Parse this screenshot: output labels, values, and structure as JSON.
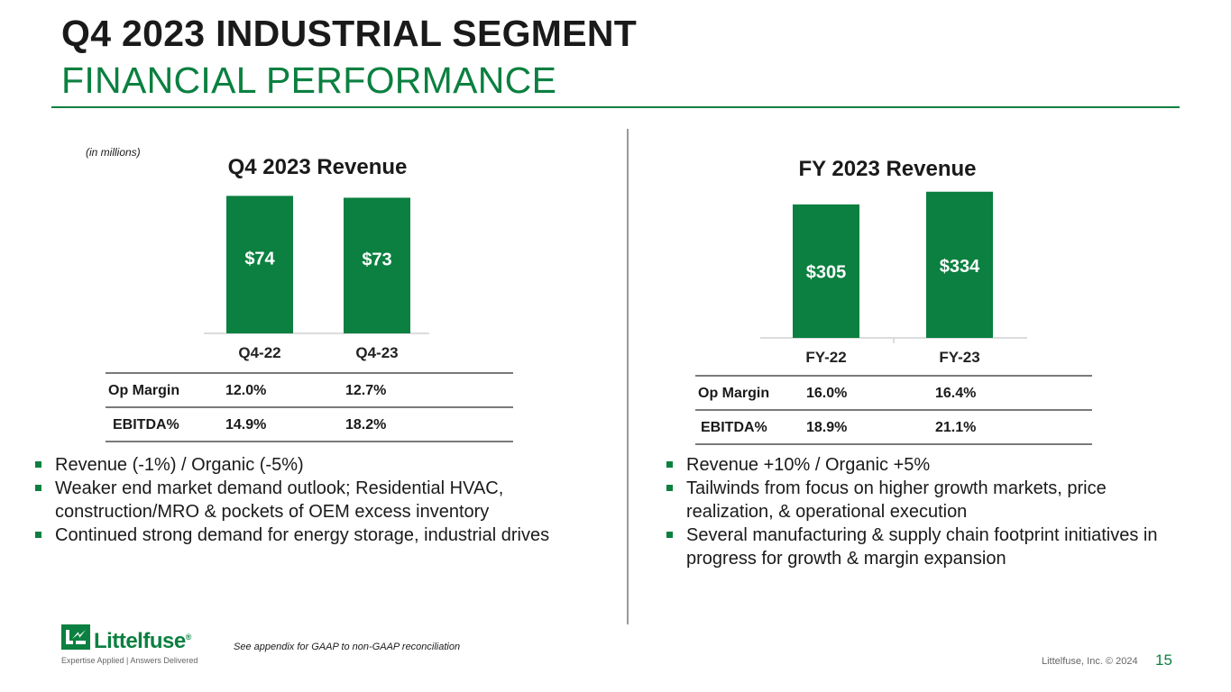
{
  "header": {
    "title": "Q4 2023 INDUSTRIAL SEGMENT",
    "subtitle": "FINANCIAL PERFORMANCE"
  },
  "units_note": "(in millions)",
  "chart_data": [
    {
      "type": "bar",
      "title": "Q4 2023 Revenue",
      "categories": [
        "Q4-22",
        "Q4-23"
      ],
      "values": [
        74,
        73
      ],
      "value_labels": [
        "$74",
        "$73"
      ],
      "ylim": [
        0,
        80
      ],
      "xlabel": "",
      "ylabel": "",
      "bar_color": "#0b8040"
    },
    {
      "type": "bar",
      "title": "FY 2023 Revenue",
      "categories": [
        "FY-22",
        "FY-23"
      ],
      "values": [
        305,
        334
      ],
      "value_labels": [
        "$305",
        "$334"
      ],
      "ylim": [
        0,
        350
      ],
      "xlabel": "",
      "ylabel": "",
      "bar_color": "#0b8040"
    }
  ],
  "tables": {
    "q4": {
      "rows": [
        {
          "label": "Op Margin",
          "v1": "12.0%",
          "v2": "12.7%"
        },
        {
          "label": "EBITDA%",
          "v1": "14.9%",
          "v2": "18.2%"
        }
      ]
    },
    "fy": {
      "rows": [
        {
          "label": "Op Margin",
          "v1": "16.0%",
          "v2": "16.4%"
        },
        {
          "label": "EBITDA%",
          "v1": "18.9%",
          "v2": "21.1%"
        }
      ]
    }
  },
  "bullets_left": [
    "Revenue (-1%) / Organic (-5%)",
    "Weaker end market demand outlook; Residential HVAC, construction/MRO & pockets of OEM excess inventory",
    "Continued strong demand for energy storage, industrial drives"
  ],
  "bullets_right": [
    "Revenue +10% / Organic +5%",
    "Tailwinds from focus on higher growth markets, price realization, & operational execution",
    "Several manufacturing & supply chain footprint initiatives in progress for growth & margin expansion"
  ],
  "footnote": "See appendix for GAAP to non-GAAP reconciliation",
  "logo": {
    "wordmark": "Littelfuse",
    "tagline": "Expertise Applied | Answers Delivered",
    "registered": "®"
  },
  "copyright": "Littelfuse, Inc. © 2024",
  "page_number": "15",
  "colors": {
    "accent": "#0b8040",
    "text": "#1a1a1a"
  }
}
